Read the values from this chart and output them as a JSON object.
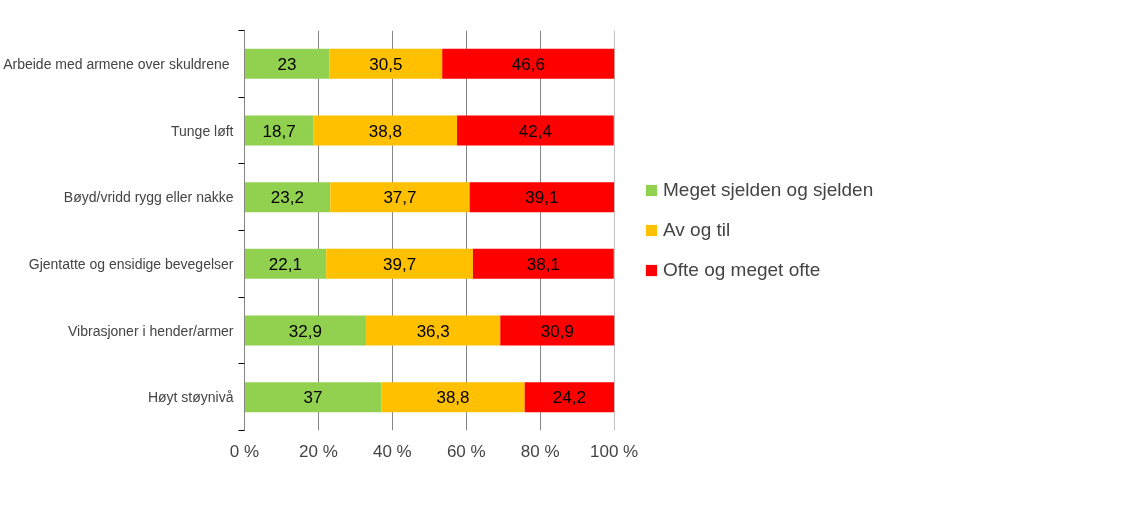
{
  "chart_data": {
    "type": "bar",
    "orientation": "horizontal",
    "stacked": true,
    "categories": [
      "Arbeide  med armene over skuldrene",
      "Tunge løft",
      "Bøyd/vridd rygg eller nakke",
      "Gjentatte og ensidige bevegelser",
      "Vibrasjoner i hender/armer",
      "Høyt støynivå"
    ],
    "series": [
      {
        "name": "Meget sjelden og sjelden",
        "color": "#92d050",
        "values": [
          23,
          18.7,
          23.2,
          22.1,
          32.9,
          37
        ],
        "value_labels": [
          "23",
          "18,7",
          "23,2",
          "22,1",
          "32,9",
          "37"
        ]
      },
      {
        "name": "Av og til",
        "color": "#ffc000",
        "values": [
          30.5,
          38.8,
          37.7,
          39.7,
          36.3,
          38.8
        ],
        "value_labels": [
          "30,5",
          "38,8",
          "37,7",
          "39,7",
          "36,3",
          "38,8"
        ]
      },
      {
        "name": "Ofte og meget ofte",
        "color": "#ff0000",
        "values": [
          46.6,
          42.4,
          39.1,
          38.1,
          30.9,
          24.2
        ],
        "value_labels": [
          "46,6",
          "42,4",
          "39,1",
          "38,1",
          "30,9",
          "24,2"
        ]
      }
    ],
    "xlim": [
      0,
      100.1
    ],
    "xticks": [
      {
        "value": 0,
        "label": "0 %"
      },
      {
        "value": 20,
        "label": "20 %"
      },
      {
        "value": 40,
        "label": "40 %"
      },
      {
        "value": 60,
        "label": "60 %"
      },
      {
        "value": 80,
        "label": "80 %"
      },
      {
        "value": 100,
        "label": "100 %"
      }
    ],
    "grid": "x",
    "legend": "right"
  }
}
